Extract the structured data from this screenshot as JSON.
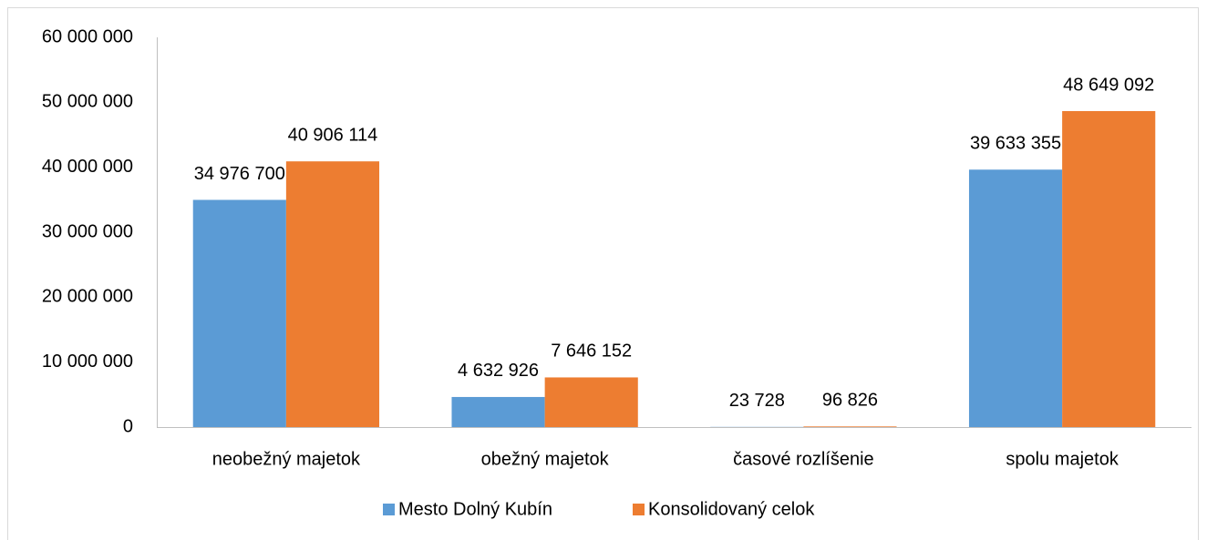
{
  "chart_data": {
    "type": "bar",
    "categories": [
      "neobežný majetok",
      "obežný majetok",
      "časové rozlíšenie",
      "spolu majetok"
    ],
    "series": [
      {
        "name": "Mesto Dolný Kubín",
        "color": "#5b9bd5",
        "values": [
          34976700,
          4632926,
          23728,
          39633355
        ],
        "value_labels": [
          "34 976 700",
          "4 632 926",
          "23 728",
          "39 633 355"
        ]
      },
      {
        "name": "Konsolidovaný celok",
        "color": "#ed7d31",
        "values": [
          40906114,
          7646152,
          96826,
          48649092
        ],
        "value_labels": [
          "40 906 114",
          "7 646 152",
          "96 826",
          "48 649 092"
        ]
      }
    ],
    "ylim": [
      0,
      60000000
    ],
    "yticks": [
      {
        "value": 0,
        "label": "0"
      },
      {
        "value": 10000000,
        "label": "10 000 000"
      },
      {
        "value": 20000000,
        "label": "20 000 000"
      },
      {
        "value": 30000000,
        "label": "30 000 000"
      },
      {
        "value": 40000000,
        "label": "40 000 000"
      },
      {
        "value": 50000000,
        "label": "50 000 000"
      },
      {
        "value": 60000000,
        "label": "60 000 000"
      }
    ],
    "grid": false,
    "legend": "bottom"
  }
}
